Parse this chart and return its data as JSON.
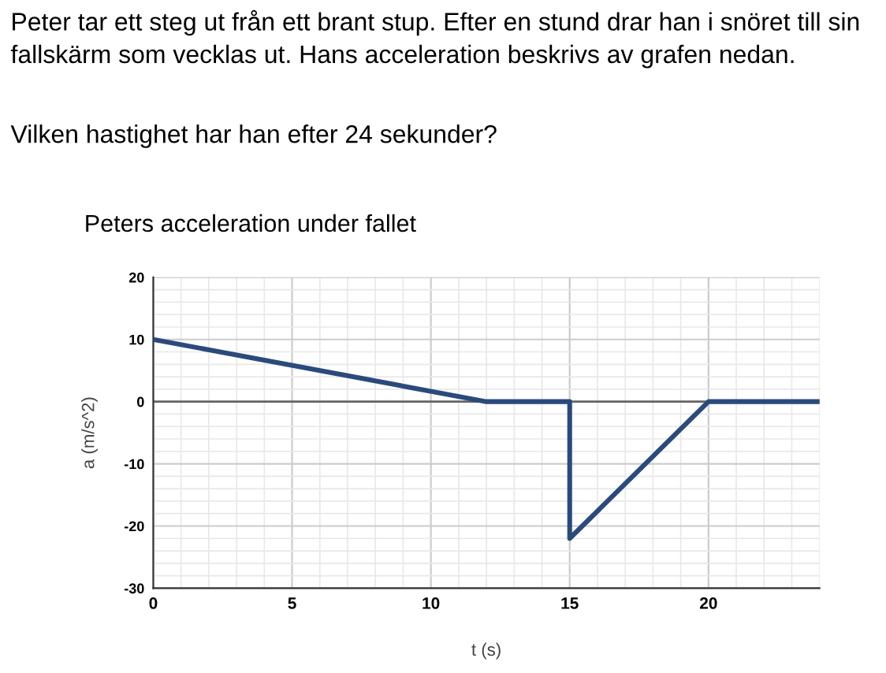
{
  "chart_data": {
    "type": "line",
    "title": "Peters acceleration under fallet",
    "annotations": [
      "Peter tar ett steg ut från ett brant stup. Efter en stund drar han i snöret till sin fallskärm som vecklas ut. Hans acceleration beskrivs av grafen nedan.",
      "Vilken hastighet har han efter 24 sekunder?"
    ],
    "xlabel": "t (s)",
    "ylabel": "a (m/s^2)",
    "series": [
      {
        "color": "#2b4a7c",
        "x": [
          0,
          12,
          15,
          15,
          20,
          24
        ],
        "values": [
          10,
          0,
          0,
          -22,
          0,
          0
        ]
      }
    ],
    "xlim": [
      0,
      24
    ],
    "xticks": [
      0,
      5,
      10,
      15,
      20
    ],
    "ylim": [
      -30,
      20
    ],
    "yticks": [
      -30,
      -20,
      -10,
      0,
      10,
      20
    ],
    "grid": true,
    "marker": "none",
    "line_style": "solid",
    "ref_lines": [
      {
        "axis": "y",
        "value": 0,
        "color": "#666666"
      }
    ]
  }
}
